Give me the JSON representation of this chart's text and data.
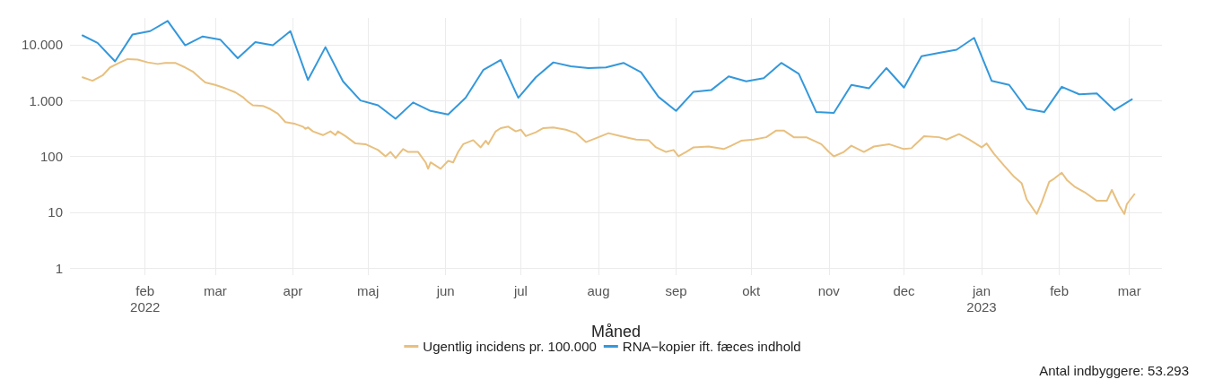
{
  "chart_data": {
    "type": "line",
    "xlabel": "Måned",
    "log": "y",
    "grid": true,
    "legend": "bottom",
    "marker": "none",
    "line_style": "solid",
    "xlim": [
      "2022-01-02",
      "2023-03-14"
    ],
    "xticks": [
      {
        "value": "2022-02-01",
        "label": "feb\n2022"
      },
      {
        "value": "2022-03-01",
        "label": "mar"
      },
      {
        "value": "2022-04-01",
        "label": "apr"
      },
      {
        "value": "2022-05-01",
        "label": "maj"
      },
      {
        "value": "2022-06-01",
        "label": "jun"
      },
      {
        "value": "2022-07-01",
        "label": "jul"
      },
      {
        "value": "2022-08-01",
        "label": "aug"
      },
      {
        "value": "2022-09-01",
        "label": "sep"
      },
      {
        "value": "2022-10-01",
        "label": "okt"
      },
      {
        "value": "2022-11-01",
        "label": "nov"
      },
      {
        "value": "2022-12-01",
        "label": "dec"
      },
      {
        "value": "2023-01-01",
        "label": "jan\n2023"
      },
      {
        "value": "2023-02-01",
        "label": "feb"
      },
      {
        "value": "2023-03-01",
        "label": "mar"
      }
    ],
    "ylim": [
      0.75,
      30000
    ],
    "yticks": [
      1,
      10,
      100,
      {
        "value": 1000,
        "label": "1.000"
      },
      {
        "value": 10000,
        "label": "10.000"
      }
    ],
    "annotations": [
      "Antal indbyggere: 53.293"
    ],
    "series": [
      {
        "name": "Ugentlig incidens pr. 100.000",
        "color": "#e8c07f",
        "x": [
          "2022-01-07",
          "2022-01-11",
          "2022-01-15",
          "2022-01-18",
          "2022-01-22",
          "2022-01-25",
          "2022-01-29",
          "2022-02-02",
          "2022-02-06",
          "2022-02-09",
          "2022-02-13",
          "2022-02-17",
          "2022-02-20",
          "2022-02-23",
          "2022-02-25",
          "2022-03-01",
          "2022-03-05",
          "2022-03-09",
          "2022-03-12",
          "2022-03-14",
          "2022-03-16",
          "2022-03-20",
          "2022-03-23",
          "2022-03-26",
          "2022-03-29",
          "2022-04-02",
          "2022-04-05",
          "2022-04-06",
          "2022-04-07",
          "2022-04-09",
          "2022-04-13",
          "2022-04-16",
          "2022-04-18",
          "2022-04-19",
          "2022-04-22",
          "2022-04-26",
          "2022-04-30",
          "2022-05-05",
          "2022-05-08",
          "2022-05-10",
          "2022-05-12",
          "2022-05-15",
          "2022-05-17",
          "2022-05-21",
          "2022-05-24",
          "2022-05-25",
          "2022-05-26",
          "2022-05-30",
          "2022-06-02",
          "2022-06-04",
          "2022-06-06",
          "2022-06-08",
          "2022-06-12",
          "2022-06-15",
          "2022-06-17",
          "2022-06-18",
          "2022-06-21",
          "2022-06-23",
          "2022-06-26",
          "2022-06-29",
          "2022-07-01",
          "2022-07-03",
          "2022-07-07",
          "2022-07-10",
          "2022-07-14",
          "2022-07-19",
          "2022-07-23",
          "2022-07-27",
          "2022-08-01",
          "2022-08-05",
          "2022-08-10",
          "2022-08-16",
          "2022-08-21",
          "2022-08-24",
          "2022-08-28",
          "2022-08-31",
          "2022-09-02",
          "2022-09-05",
          "2022-09-08",
          "2022-09-14",
          "2022-09-20",
          "2022-09-23",
          "2022-09-27",
          "2022-10-02",
          "2022-10-07",
          "2022-10-11",
          "2022-10-14",
          "2022-10-18",
          "2022-10-23",
          "2022-10-29",
          "2022-11-01",
          "2022-11-03",
          "2022-11-07",
          "2022-11-10",
          "2022-11-15",
          "2022-11-19",
          "2022-11-25",
          "2022-12-01",
          "2022-12-04",
          "2022-12-09",
          "2022-12-15",
          "2022-12-18",
          "2022-12-23",
          "2022-12-27",
          "2022-12-30",
          "2023-01-01",
          "2023-01-03",
          "2023-01-06",
          "2023-01-10",
          "2023-01-14",
          "2023-01-17",
          "2023-01-19",
          "2023-01-23",
          "2023-01-25",
          "2023-01-28",
          "2023-01-30",
          "2023-02-02",
          "2023-02-04",
          "2023-02-07",
          "2023-02-11",
          "2023-02-16",
          "2023-02-20",
          "2023-02-22",
          "2023-02-25",
          "2023-02-27",
          "2023-02-28",
          "2023-03-03"
        ],
        "values": [
          2600,
          2250,
          2800,
          3900,
          4800,
          5500,
          5400,
          4800,
          4500,
          4700,
          4700,
          3900,
          3300,
          2500,
          2100,
          1900,
          1650,
          1400,
          1150,
          950,
          820,
          800,
          700,
          580,
          410,
          380,
          340,
          310,
          330,
          280,
          240,
          280,
          240,
          280,
          230,
          170,
          165,
          130,
          100,
          120,
          93,
          135,
          120,
          120,
          78,
          60,
          78,
          60,
          83,
          78,
          120,
          165,
          195,
          145,
          190,
          165,
          280,
          320,
          340,
          280,
          300,
          230,
          270,
          320,
          330,
          300,
          260,
          180,
          220,
          260,
          230,
          200,
          195,
          145,
          120,
          130,
          100,
          120,
          145,
          150,
          135,
          155,
          190,
          200,
          220,
          290,
          290,
          220,
          220,
          165,
          120,
          100,
          120,
          155,
          120,
          150,
          165,
          135,
          140,
          230,
          220,
          200,
          250,
          200,
          165,
          145,
          170,
          110,
          68,
          43,
          33,
          17,
          9.3,
          15,
          35,
          40,
          51,
          38,
          29,
          23,
          16,
          16,
          25,
          13,
          9.3,
          14,
          21
        ]
      },
      {
        "name": "RNA−kopier ift. fæces indhold",
        "color": "#3498db",
        "x": [
          "2022-01-07",
          "2022-01-13",
          "2022-01-20",
          "2022-01-27",
          "2022-02-03",
          "2022-02-10",
          "2022-02-17",
          "2022-02-24",
          "2022-03-03",
          "2022-03-10",
          "2022-03-17",
          "2022-03-24",
          "2022-03-31",
          "2022-04-07",
          "2022-04-14",
          "2022-04-21",
          "2022-04-28",
          "2022-05-05",
          "2022-05-12",
          "2022-05-19",
          "2022-05-26",
          "2022-06-02",
          "2022-06-09",
          "2022-06-16",
          "2022-06-23",
          "2022-06-30",
          "2022-07-07",
          "2022-07-14",
          "2022-07-21",
          "2022-07-28",
          "2022-08-04",
          "2022-08-11",
          "2022-08-18",
          "2022-08-25",
          "2022-09-01",
          "2022-09-08",
          "2022-09-15",
          "2022-09-22",
          "2022-09-29",
          "2022-10-06",
          "2022-10-13",
          "2022-10-20",
          "2022-10-27",
          "2022-11-03",
          "2022-11-10",
          "2022-11-17",
          "2022-11-24",
          "2022-12-01",
          "2022-12-08",
          "2022-12-15",
          "2022-12-22",
          "2022-12-29",
          "2023-01-05",
          "2023-01-12",
          "2023-01-19",
          "2023-01-26",
          "2023-02-02",
          "2023-02-09",
          "2023-02-16",
          "2023-02-23",
          "2023-03-02"
        ],
        "values": [
          14600,
          10700,
          5000,
          15200,
          17400,
          26500,
          9700,
          14000,
          12300,
          5700,
          11100,
          9700,
          17400,
          2330,
          9000,
          2200,
          1000,
          820,
          470,
          920,
          650,
          560,
          1120,
          3500,
          5300,
          1120,
          2600,
          4800,
          4100,
          3800,
          3900,
          4700,
          3200,
          1160,
          650,
          1430,
          1530,
          2700,
          2200,
          2500,
          4700,
          3000,
          620,
          600,
          1900,
          1650,
          3800,
          1700,
          6200,
          7100,
          8100,
          13200,
          2250,
          1900,
          710,
          620,
          1760,
          1290,
          1340,
          670,
          1050
        ]
      }
    ]
  }
}
